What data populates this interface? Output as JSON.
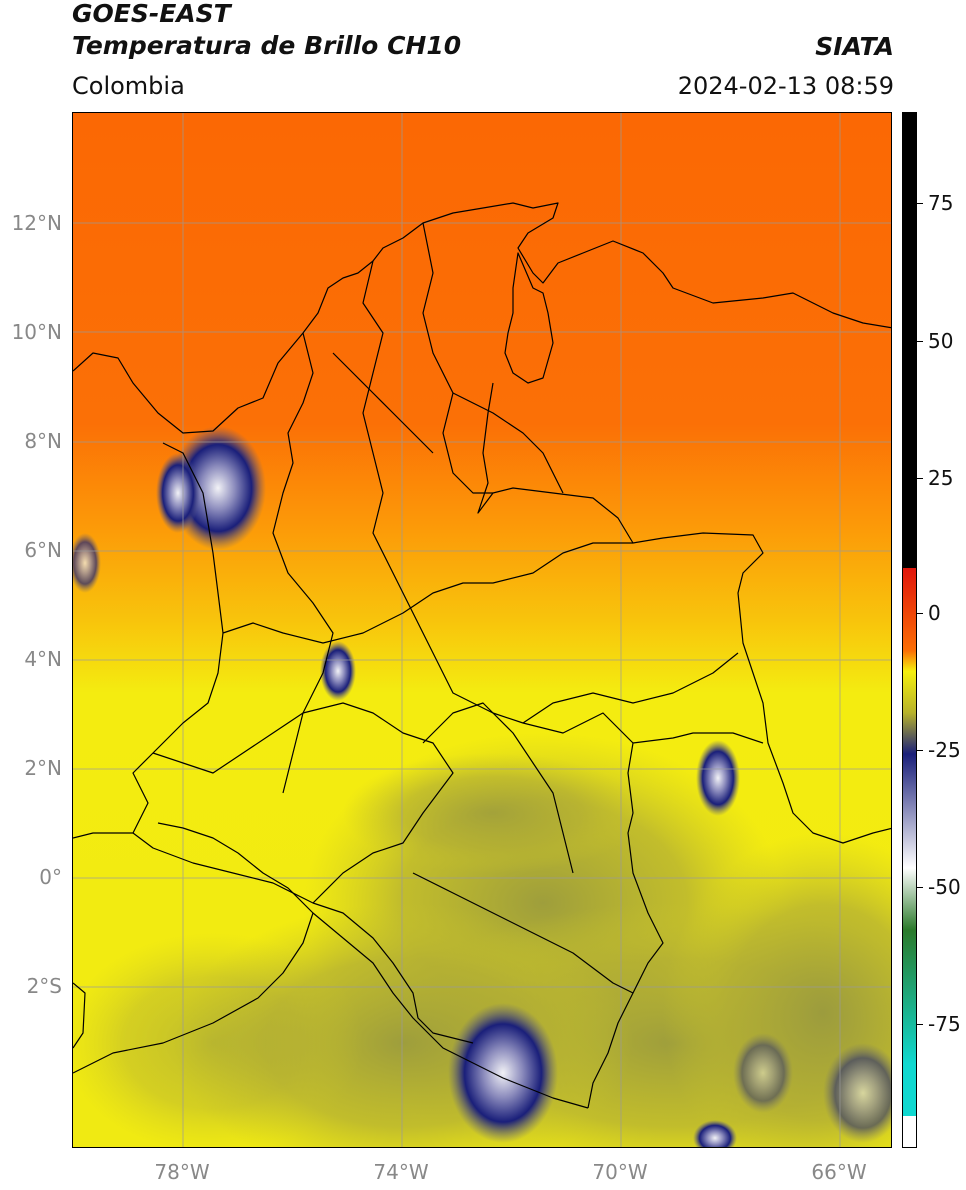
{
  "header": {
    "satellite": "GOES-EAST",
    "product": "Temperatura de Brillo CH10",
    "region": "Colombia",
    "source": "SIATA",
    "timestamp": "2024-02-13 08:59"
  },
  "axes": {
    "latitude_labels": [
      "12°N",
      "10°N",
      "8°N",
      "6°N",
      "4°N",
      "2°N",
      "0°",
      "2°S"
    ],
    "longitude_labels": [
      "78°W",
      "74°W",
      "70°W",
      "66°W"
    ]
  },
  "colorbar": {
    "tick_labels": [
      "75",
      "50",
      "25",
      "0",
      "-25",
      "-50",
      "-75"
    ],
    "colors": {
      "black": "#000000",
      "red": "#e0160c",
      "orange": "#fb6e06",
      "yellow": "#f5f00e",
      "olive": "#b7b22a",
      "navy": "#1a1f7a",
      "white": "#ffffff",
      "green": "#2b7a2b",
      "cyan": "#10d8d0"
    }
  },
  "colors": {
    "sea_orange": "#fb6e06",
    "land_yellow": "#f4f012",
    "cloud_olive": "#a6a63a",
    "cold_cloud_navy": "#1a1f7a",
    "gridline": "#9a9a9a",
    "boundary": "#000000"
  }
}
